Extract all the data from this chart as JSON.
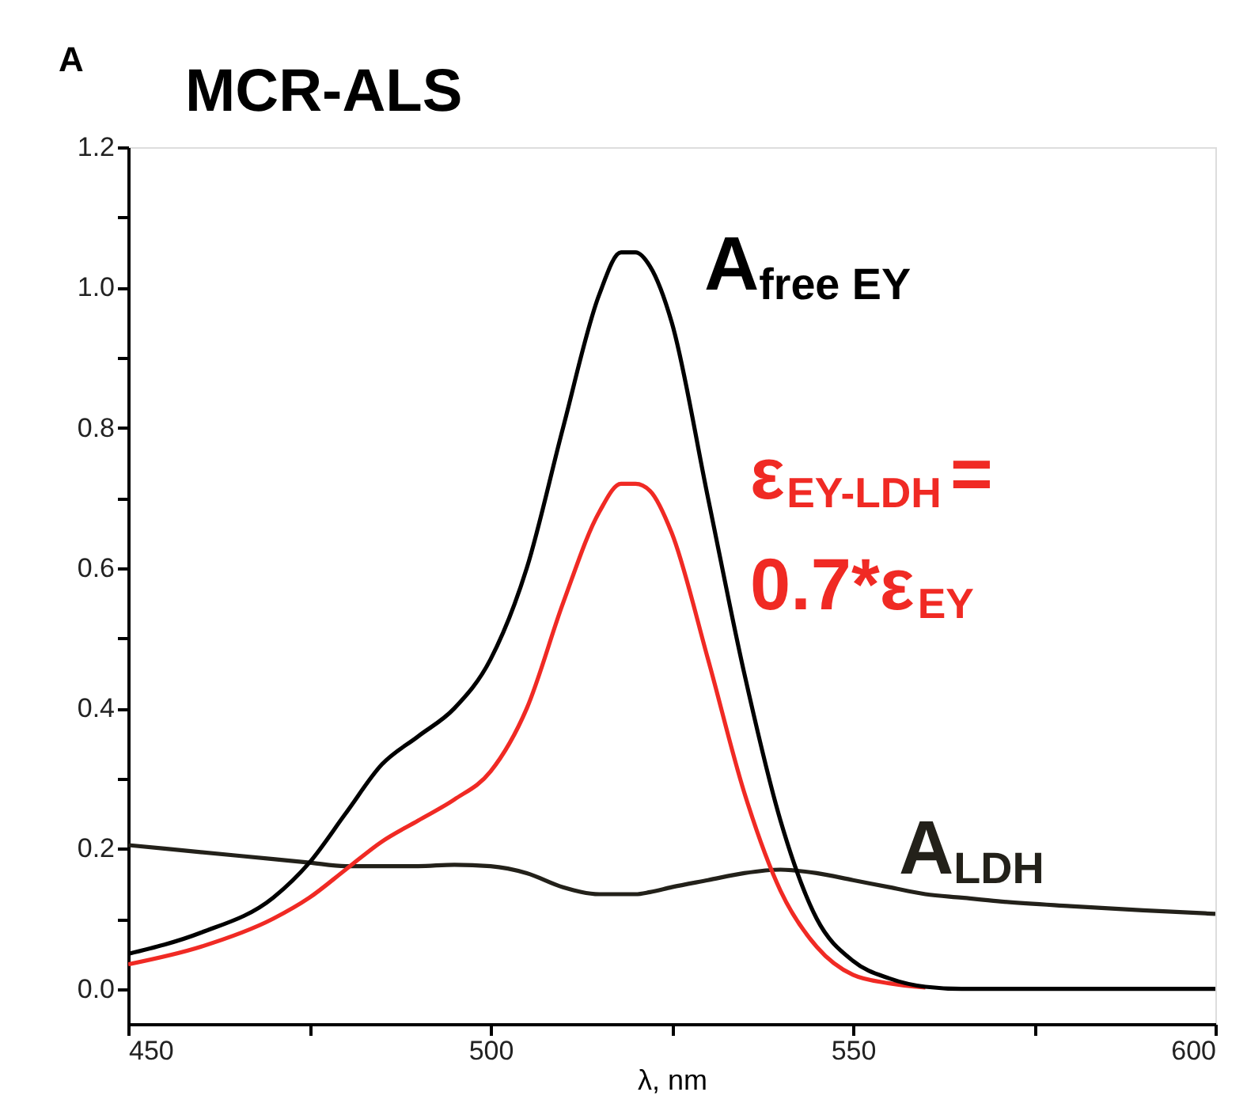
{
  "chart_data": {
    "type": "line",
    "title": "MCR-ALS",
    "xlabel": "λ, nm",
    "annotations": [
      "A"
    ],
    "xlim": [
      450,
      600
    ],
    "ylim": [
      -0.05,
      1.2
    ],
    "xticks": [
      450,
      {
        "value": 475,
        "label": null
      },
      500,
      {
        "value": 525,
        "label": null
      },
      550,
      {
        "value": 575,
        "label": null
      },
      600
    ],
    "yticks": [
      {
        "value": 0,
        "label": "0.0"
      },
      {
        "value": 0.1,
        "label": null
      },
      0.2,
      {
        "value": 0.3,
        "label": null
      },
      0.4,
      {
        "value": 0.5,
        "label": null
      },
      0.6,
      {
        "value": 0.7,
        "label": null
      },
      0.8,
      {
        "value": 0.9,
        "label": null
      },
      {
        "value": 1,
        "label": "1.0"
      },
      {
        "value": 1.1,
        "label": null
      },
      1.2
    ],
    "x": [
      450,
      460,
      470,
      475,
      480,
      485,
      490,
      495,
      500,
      505,
      510,
      515,
      518,
      520,
      522,
      525,
      530,
      535,
      540,
      545,
      550,
      555,
      560,
      565,
      570,
      580,
      590,
      600
    ],
    "series": [
      {
        "name": "A$_{free EY}$",
        "color": "#000000",
        "values": [
          0.05,
          0.08,
          0.13,
          0.18,
          0.25,
          0.32,
          0.36,
          0.4,
          0.47,
          0.6,
          0.8,
          0.99,
          1.05,
          1.05,
          1.03,
          0.95,
          0.7,
          0.45,
          0.24,
          0.1,
          0.04,
          0.015,
          0.003,
          0.0,
          0.0,
          0.0,
          0.0,
          0.0
        ]
      },
      {
        "name": "ε$_{EY-LDH}$= 0.7*ε$_{EY}$",
        "color": "#f02a24",
        "values": [
          0.035,
          0.06,
          0.1,
          0.13,
          0.17,
          0.21,
          0.24,
          0.27,
          0.31,
          0.4,
          0.55,
          0.68,
          0.72,
          0.72,
          0.71,
          0.65,
          0.47,
          0.28,
          0.14,
          0.06,
          0.02,
          0.008,
          0.002,
          null,
          null,
          null,
          null,
          null
        ]
      },
      {
        "name": "A$_{LDH}$",
        "color": "#23211a",
        "values": [
          0.205,
          0.195,
          0.185,
          0.18,
          0.175,
          0.175,
          0.175,
          0.177,
          0.175,
          0.165,
          0.145,
          0.135,
          0.135,
          0.135,
          0.138,
          0.145,
          0.155,
          0.165,
          0.17,
          0.165,
          0.155,
          0.145,
          0.135,
          0.13,
          0.125,
          0.118,
          0.112,
          0.107
        ]
      }
    ]
  }
}
